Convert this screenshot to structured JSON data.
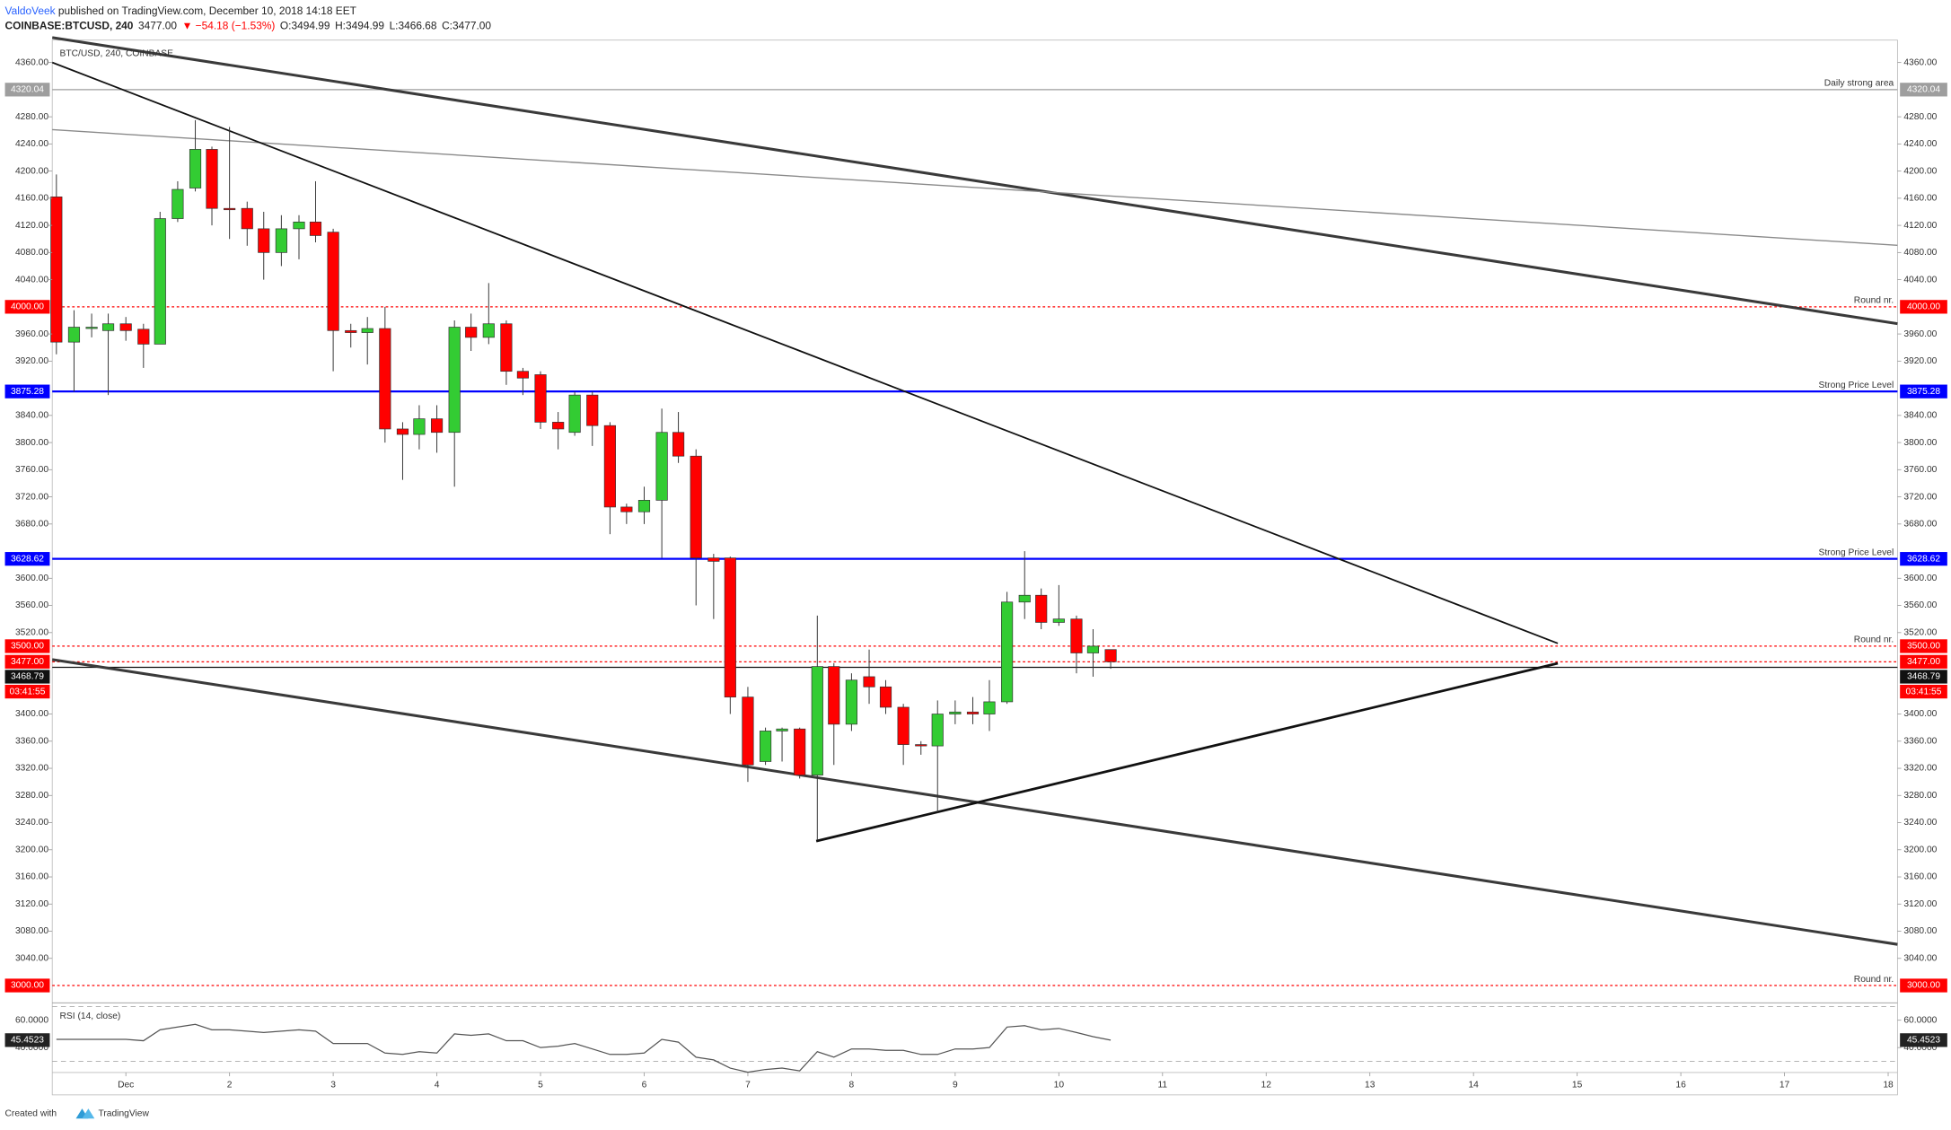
{
  "header": {
    "author": "ValdoVeek",
    "published": " published on TradingView.com, December 10, 2018 14:18 EET",
    "symbol": "COINBASE:BTCUSD, 240",
    "last": "3477.00",
    "change": "▼ −54.18 (−1.53%)",
    "open": "O:3494.99",
    "high": "H:3494.99",
    "low": "L:3466.68",
    "close": "C:3477.00"
  },
  "footer": {
    "created": "Created with",
    "brand": "TradingView"
  },
  "chart_data": {
    "type": "candlestick",
    "label": "BTC/USD, 240, COINBASE",
    "up_color": "#33cc33",
    "down_color": "#ff0000",
    "x": [
      0.33,
      0.5,
      0.67,
      0.83,
      1,
      1.17,
      1.33,
      1.5,
      1.67,
      1.83,
      2,
      2.17,
      2.33,
      2.5,
      2.67,
      2.83,
      3,
      3.17,
      3.33,
      3.5,
      3.67,
      3.83,
      4,
      4.17,
      4.33,
      4.5,
      4.67,
      4.83,
      5,
      5.17,
      5.33,
      5.5,
      5.67,
      5.83,
      6,
      6.17,
      6.33,
      6.5,
      6.67,
      6.83,
      7,
      7.17,
      7.33,
      7.5,
      7.67,
      7.83,
      8,
      8.17,
      8.33,
      8.5,
      8.67,
      8.83,
      9,
      9.17,
      9.33,
      9.5,
      9.67,
      9.83,
      10,
      10.17,
      10.33,
      10.5
    ],
    "open": [
      4162,
      3948,
      3968,
      3965,
      3975,
      3967,
      3945,
      4130,
      4175,
      4232,
      4145,
      4145,
      4115,
      4080,
      4115,
      4125,
      4110,
      3965,
      3962,
      3968,
      3820,
      3812,
      3835,
      3815,
      3970,
      3955,
      3975,
      3905,
      3900,
      3830,
      3815,
      3870,
      3825,
      3705,
      3698,
      3715,
      3815,
      3780,
      3630,
      3630,
      3425,
      3330,
      3375,
      3378,
      3310,
      3470,
      3385,
      3455,
      3440,
      3410,
      3355,
      3353,
      3400,
      3403,
      3400,
      3418,
      3565,
      3575,
      3535,
      3540,
      3490,
      3494.99
    ],
    "high": [
      4195,
      3995,
      3990,
      3990,
      3985,
      3975,
      4140,
      4185,
      4275,
      4236,
      4265,
      4155,
      4140,
      4135,
      4135,
      4185,
      4115,
      3975,
      3985,
      4000,
      3830,
      3855,
      3855,
      3980,
      3990,
      4035,
      3980,
      3910,
      3905,
      3845,
      3875,
      3875,
      3830,
      3710,
      3735,
      3850,
      3845,
      3790,
      3636,
      3632,
      3440,
      3380,
      3380,
      3380,
      3545,
      3475,
      3460,
      3495,
      3450,
      3415,
      3360,
      3420,
      3420,
      3425,
      3450,
      3580,
      3640,
      3585,
      3590,
      3545,
      3525,
      3494.99
    ],
    "low": [
      3930,
      3875,
      3955,
      3870,
      3950,
      3910,
      3945,
      4125,
      4170,
      4120,
      4100,
      4090,
      4040,
      4060,
      4070,
      4095,
      3905,
      3940,
      3915,
      3800,
      3745,
      3790,
      3785,
      3735,
      3935,
      3945,
      3885,
      3870,
      3820,
      3790,
      3810,
      3795,
      3665,
      3680,
      3680,
      3630,
      3770,
      3560,
      3540,
      3400,
      3300,
      3325,
      3330,
      3305,
      3215,
      3325,
      3375,
      3415,
      3400,
      3325,
      3340,
      3255,
      3385,
      3385,
      3375,
      3415,
      3540,
      3525,
      3530,
      3460,
      3455,
      3466.68
    ],
    "close": [
      3948,
      3970,
      3970,
      3975,
      3965,
      3945,
      4130,
      4173,
      4232,
      4145,
      4143,
      4115,
      4080,
      4115,
      4125,
      4105,
      3965,
      3962,
      3968,
      3820,
      3812,
      3835,
      3815,
      3970,
      3955,
      3975,
      3905,
      3895,
      3830,
      3820,
      3870,
      3825,
      3705,
      3698,
      3715,
      3815,
      3780,
      3630,
      3625,
      3425,
      3325,
      3375,
      3378,
      3310,
      3470,
      3385,
      3450,
      3440,
      3410,
      3355,
      3353,
      3400,
      3403,
      3400,
      3418,
      3565,
      3575,
      3535,
      3540,
      3490,
      3500,
      3477
    ],
    "xlim": [
      0.29,
      18.09
    ],
    "xticks": [
      {
        "value": 1,
        "label": "Dec"
      },
      2,
      3,
      4,
      5,
      6,
      7,
      8,
      9,
      10,
      11,
      12,
      13,
      14,
      15,
      16,
      17,
      18
    ],
    "ylim": [
      2976.3,
      4393
    ],
    "yticks": [
      {
        "value": 3040,
        "label": "3040.00"
      },
      {
        "value": 3080,
        "label": "3080.00"
      },
      {
        "value": 3120,
        "label": "3120.00"
      },
      {
        "value": 3160,
        "label": "3160.00"
      },
      {
        "value": 3200,
        "label": "3200.00"
      },
      {
        "value": 3240,
        "label": "3240.00"
      },
      {
        "value": 3280,
        "label": "3280.00"
      },
      {
        "value": 3320,
        "label": "3320.00"
      },
      {
        "value": 3360,
        "label": "3360.00"
      },
      {
        "value": 3400,
        "label": "3400.00"
      },
      {
        "value": 3520,
        "label": "3520.00"
      },
      {
        "value": 3560,
        "label": "3560.00"
      },
      {
        "value": 3600,
        "label": "3600.00"
      },
      {
        "value": 3680,
        "label": "3680.00"
      },
      {
        "value": 3720,
        "label": "3720.00"
      },
      {
        "value": 3760,
        "label": "3760.00"
      },
      {
        "value": 3800,
        "label": "3800.00"
      },
      {
        "value": 3840,
        "label": "3840.00"
      },
      {
        "value": 3920,
        "label": "3920.00"
      },
      {
        "value": 3960,
        "label": "3960.00"
      },
      {
        "value": 4040,
        "label": "4040.00"
      },
      {
        "value": 4080,
        "label": "4080.00"
      },
      {
        "value": 4120,
        "label": "4120.00"
      },
      {
        "value": 4160,
        "label": "4160.00"
      },
      {
        "value": 4200,
        "label": "4200.00"
      },
      {
        "value": 4240,
        "label": "4240.00"
      },
      {
        "value": 4280,
        "label": "4280.00"
      },
      {
        "value": 4360,
        "label": "4360.00"
      }
    ],
    "grid": false,
    "levels": [
      {
        "value": 4320.04,
        "label": "4320.04",
        "note": "Daily strong area",
        "color": "#9e9e9e",
        "style": "solid"
      },
      {
        "value": 4000,
        "label": "4000.00",
        "note": "Round nr.",
        "color": "#ff0000",
        "style": "dotted"
      },
      {
        "value": 3875.28,
        "label": "3875.28",
        "note": "Strong Price Level",
        "color": "#0000ff",
        "style": "solid"
      },
      {
        "value": 3628.62,
        "label": "3628.62",
        "note": "Strong Price Level",
        "color": "#0000ff",
        "style": "solid"
      },
      {
        "value": 3500,
        "label": "3500.00",
        "note": "Round nr.",
        "color": "#ff0000",
        "style": "dotted"
      },
      {
        "value": 3477,
        "label": "3477.00",
        "countdown": "03:41:55",
        "color": "#ff0000",
        "style": "dotted"
      },
      {
        "value": 3468.79,
        "label": "3468.79",
        "color": "#111111",
        "style": "solid"
      },
      {
        "value": 3000,
        "label": "3000.00",
        "note": "Round nr.",
        "color": "#ff0000",
        "style": "dotted"
      }
    ],
    "rsi": {
      "title": "RSI (14, close)",
      "color": "#555555",
      "values": [
        46,
        46,
        46,
        46,
        46,
        45,
        53,
        55,
        57,
        53,
        53,
        52,
        51,
        52,
        53,
        52,
        43,
        43,
        43,
        36,
        35,
        37,
        36,
        50,
        49,
        50,
        45,
        45,
        40,
        41,
        43,
        39,
        35,
        35,
        36,
        46,
        44,
        33,
        31,
        25,
        22,
        24,
        25,
        23,
        37,
        33,
        39,
        39,
        38,
        38,
        35,
        35,
        39,
        39,
        40,
        55,
        56,
        53,
        54,
        51,
        48,
        45.4523
      ],
      "ylim": [
        21.8,
        72.7
      ],
      "yticks": [
        {
          "value": 40,
          "label": "40.0000"
        },
        {
          "value": 60,
          "label": "60.0000"
        }
      ]
    }
  }
}
